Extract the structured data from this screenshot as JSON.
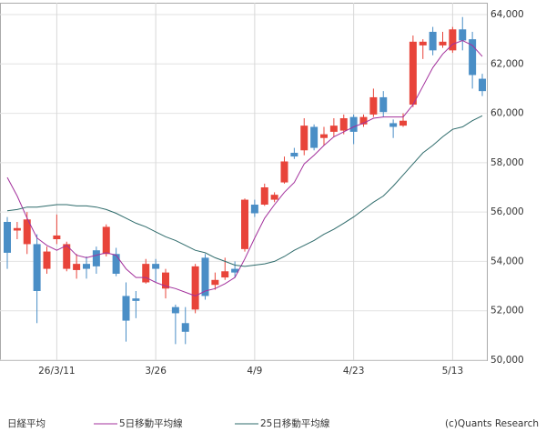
{
  "chart_data": {
    "type": "candlestick",
    "categories": [
      null,
      null,
      null,
      null,
      null,
      "26/3/11",
      null,
      null,
      null,
      null,
      null,
      null,
      null,
      null,
      null,
      "3/26",
      null,
      null,
      null,
      null,
      null,
      null,
      null,
      null,
      null,
      "4/9",
      null,
      null,
      null,
      null,
      null,
      null,
      null,
      null,
      null,
      "4/23",
      null,
      null,
      null,
      null,
      null,
      null,
      null,
      null,
      null,
      "5/13",
      null,
      null,
      null
    ],
    "series": [
      {
        "name": "日経平均",
        "up_color": "#e8443a",
        "down_color": "#4a8ec6",
        "open": [
          55600,
          55250,
          54700,
          54700,
          53700,
          54900,
          53700,
          53650,
          53900,
          54450,
          54300,
          54300,
          52600,
          52500,
          53150,
          53900,
          52900,
          52150,
          51500,
          52050,
          54150,
          53050,
          53350,
          53700,
          54500,
          56300,
          56300,
          56500,
          57200,
          58400,
          58500,
          59450,
          59000,
          59250,
          59300,
          59850,
          59550,
          59950,
          60650,
          59600,
          59500,
          60350,
          62750,
          63300,
          62750,
          62550,
          63400,
          63000,
          61400
        ],
        "high": [
          55800,
          55600,
          56000,
          55100,
          54600,
          55900,
          54800,
          54300,
          54200,
          54600,
          55500,
          54550,
          53150,
          52800,
          54100,
          54100,
          53700,
          52250,
          52150,
          53900,
          54300,
          53550,
          54150,
          54000,
          56550,
          56500,
          57150,
          56800,
          58250,
          58600,
          59800,
          59550,
          59450,
          59800,
          59950,
          59950,
          59950,
          61000,
          60900,
          59750,
          60000,
          63150,
          63000,
          63500,
          63300,
          63500,
          63900,
          63300,
          61600
        ],
        "low": [
          53700,
          54900,
          54300,
          51500,
          53500,
          54700,
          53600,
          53300,
          53300,
          53500,
          54200,
          53400,
          50750,
          51700,
          53100,
          53150,
          52500,
          50650,
          50650,
          51900,
          52450,
          52850,
          53250,
          53350,
          54400,
          55800,
          56250,
          56400,
          57150,
          58150,
          58300,
          58500,
          58700,
          59050,
          59150,
          58750,
          59450,
          59850,
          59850,
          59000,
          59450,
          60250,
          62200,
          62350,
          62650,
          62450,
          62550,
          61000,
          60700
        ],
        "close": [
          54350,
          55350,
          55700,
          52800,
          54400,
          55050,
          54700,
          53900,
          53700,
          53800,
          55400,
          53500,
          51600,
          52400,
          53900,
          53700,
          53550,
          51900,
          51150,
          53800,
          52600,
          53250,
          53600,
          53550,
          56500,
          55950,
          57000,
          56700,
          58050,
          58250,
          59500,
          58600,
          59150,
          59500,
          59800,
          59250,
          59850,
          60650,
          60050,
          59450,
          59700,
          62900,
          62900,
          62550,
          62900,
          63400,
          62950,
          61550,
          60900
        ]
      },
      {
        "name": "5日移動平均線",
        "color": "#a3309c",
        "values": [
          57400,
          56650,
          55750,
          54950,
          54650,
          54450,
          54650,
          54250,
          54150,
          54250,
          54350,
          54250,
          53700,
          53350,
          53350,
          53150,
          53000,
          52900,
          52750,
          52600,
          52800,
          52900,
          53100,
          53350,
          54100,
          54950,
          55750,
          56300,
          56800,
          57200,
          57950,
          58300,
          58700,
          59050,
          59250,
          59450,
          59600,
          59800,
          59850,
          59850,
          59850,
          60350,
          61100,
          61850,
          62400,
          62800,
          62950,
          62750,
          62300
        ]
      },
      {
        "name": "25日移動平均線",
        "color": "#2e6b6b",
        "values": [
          56050,
          56100,
          56200,
          56200,
          56250,
          56300,
          56300,
          56250,
          56250,
          56200,
          56100,
          55950,
          55750,
          55550,
          55400,
          55200,
          55000,
          54850,
          54650,
          54450,
          54350,
          54150,
          54000,
          53850,
          53800,
          53850,
          53900,
          54000,
          54200,
          54450,
          54650,
          54850,
          55100,
          55300,
          55550,
          55800,
          56100,
          56400,
          56650,
          57050,
          57500,
          57950,
          58400,
          58700,
          59050,
          59350,
          59450,
          59700,
          59900
        ]
      }
    ],
    "ylim": [
      50000,
      64000
    ],
    "yticks": [
      {
        "value": 50000,
        "label": "50,000"
      },
      {
        "value": 52000,
        "label": "52,000"
      },
      {
        "value": 54000,
        "label": "54,000"
      },
      {
        "value": 56000,
        "label": "56,000"
      },
      {
        "value": 58000,
        "label": "58,000"
      },
      {
        "value": 60000,
        "label": "60,000"
      },
      {
        "value": 62000,
        "label": "62,000"
      },
      {
        "value": 64000,
        "label": "64,000"
      }
    ],
    "grid": true,
    "credit": "(c)Quants Research"
  }
}
